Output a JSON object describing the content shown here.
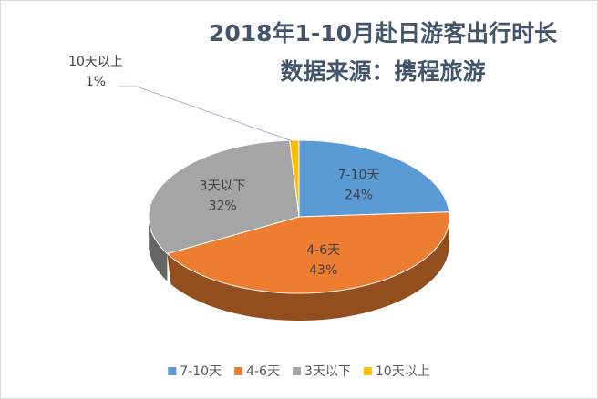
{
  "chart_data": {
    "type": "pie3d",
    "title": "2018年1-10月赴日游客出行时长",
    "subtitle": "数据来源：携程旅游",
    "categories": [
      "7-10天",
      "4-6天",
      "3天以下",
      "10天以上"
    ],
    "values": [
      24,
      43,
      32,
      1
    ],
    "value_labels": [
      "24%",
      "43%",
      "32%",
      "1%"
    ],
    "colors": [
      "#5b9bd5",
      "#ed7d31",
      "#a5a5a5",
      "#ffc000"
    ],
    "legend": "bottom"
  }
}
